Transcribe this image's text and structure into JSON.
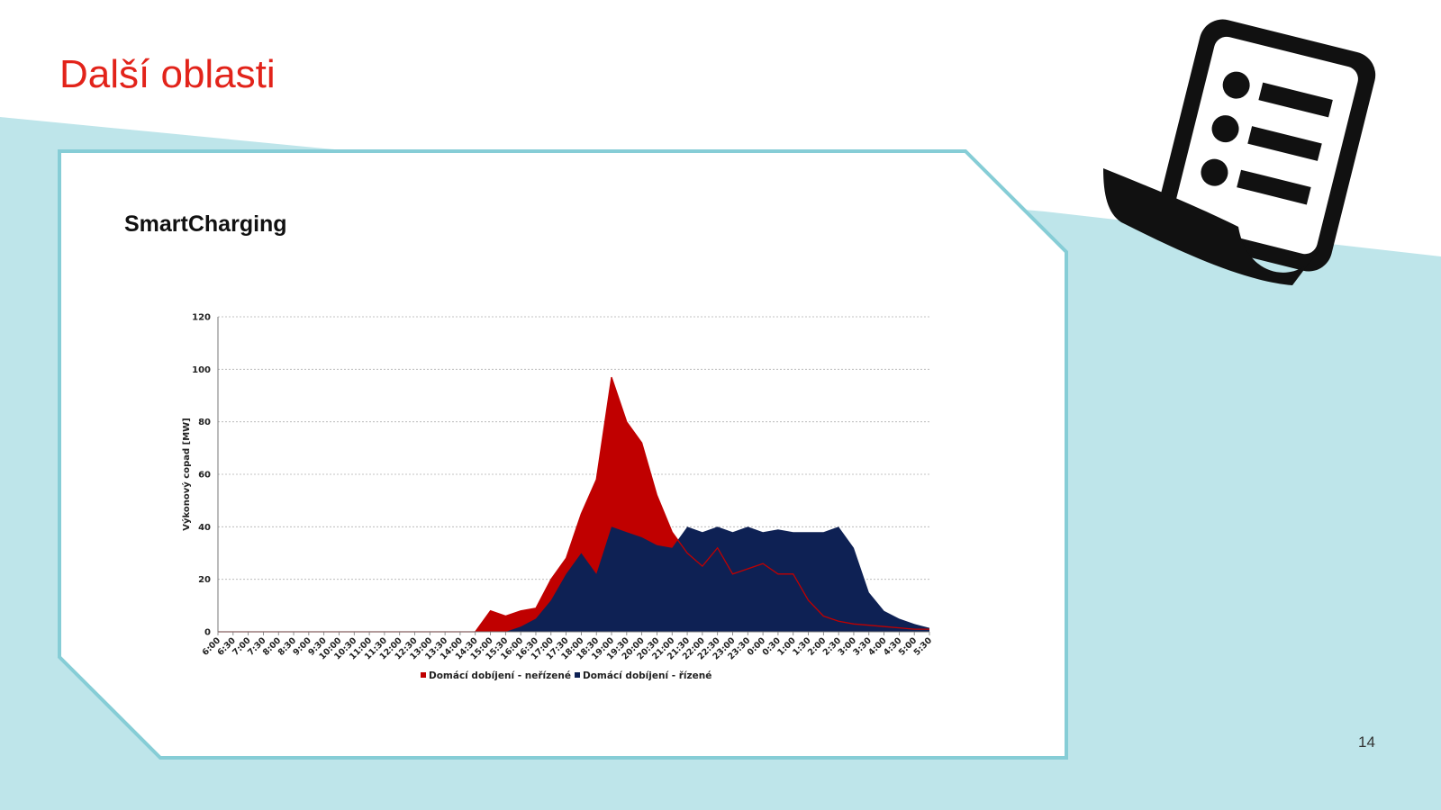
{
  "slide": {
    "title": "Další oblasti",
    "chart_heading": "SmartCharging",
    "page_number": "14",
    "icon": "document-list-icon",
    "colors": {
      "title": "#e2231a",
      "background_band": "#bee5ea",
      "frame": "#86cdd6"
    }
  },
  "chart_data": {
    "type": "area",
    "title": "",
    "xlabel": "",
    "ylabel": "Výkonový copad [MW]",
    "ylim": [
      0,
      120
    ],
    "yticks": [
      0,
      20,
      40,
      60,
      80,
      100,
      120
    ],
    "grid": true,
    "legend_position": "bottom",
    "categories": [
      "6:00",
      "6:30",
      "7:00",
      "7:30",
      "8:00",
      "8:30",
      "9:00",
      "9:30",
      "10:00",
      "10:30",
      "11:00",
      "11:30",
      "12:00",
      "12:30",
      "13:00",
      "13:30",
      "14:00",
      "14:30",
      "15:00",
      "15:30",
      "16:00",
      "16:30",
      "17:00",
      "17:30",
      "18:00",
      "18:30",
      "19:00",
      "19:30",
      "20:00",
      "20:30",
      "21:00",
      "21:30",
      "22:00",
      "22:30",
      "23:00",
      "23:30",
      "0:00",
      "0:30",
      "1:00",
      "1:30",
      "2:00",
      "2:30",
      "3:00",
      "3:30",
      "4:00",
      "4:30",
      "5:00",
      "5:30"
    ],
    "series": [
      {
        "name": "Domácí dobíjení - neřízené",
        "color": "#c00000",
        "values": [
          0,
          0,
          0,
          0,
          0,
          0,
          0,
          0,
          0,
          0,
          0,
          0,
          0,
          0,
          0,
          0,
          0,
          0,
          8,
          6,
          8,
          9,
          20,
          28,
          45,
          58,
          97,
          80,
          72,
          52,
          38,
          30,
          25,
          32,
          22,
          24,
          26,
          22,
          22,
          12,
          6,
          4,
          3,
          2.5,
          2,
          1.5,
          1,
          1
        ]
      },
      {
        "name": "Domácí dobíjení - řízené",
        "color": "#0e2154",
        "values": [
          0,
          0,
          0,
          0,
          0,
          0,
          0,
          0,
          0,
          0,
          0,
          0,
          0,
          0,
          0,
          0,
          0,
          0,
          0,
          0,
          2,
          5,
          12,
          22,
          30,
          22,
          40,
          38,
          36,
          33,
          32,
          40,
          38,
          40,
          38,
          40,
          38,
          39,
          38,
          38,
          38,
          40,
          32,
          15,
          8,
          5,
          3,
          1.5
        ]
      }
    ]
  }
}
